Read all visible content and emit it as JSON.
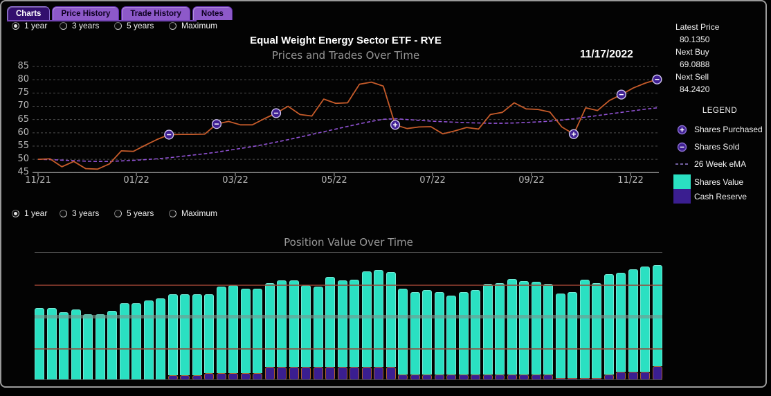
{
  "tabs": {
    "items": [
      {
        "label": "Charts",
        "selected": true
      },
      {
        "label": "Price History",
        "selected": false
      },
      {
        "label": "Trade History",
        "selected": false
      },
      {
        "label": "Notes",
        "selected": false
      }
    ]
  },
  "range_selector_top": {
    "options": [
      "1 year",
      "3 years",
      "5 years",
      "Maximum"
    ],
    "selected": "1 year"
  },
  "range_selector_bottom": {
    "options": [
      "1 year",
      "3 years",
      "5 years",
      "Maximum"
    ],
    "selected": "1 year"
  },
  "info_panel": {
    "latest_price_label": "Latest Price",
    "latest_price_value": "80.1350",
    "next_buy_label": "Next Buy",
    "next_buy_value": "69.0888",
    "next_sell_label": "Next Sell",
    "next_sell_value": "84.2420"
  },
  "legend": {
    "title": "LEGEND",
    "items": [
      {
        "icon": "circle-plus-icon",
        "label": "Shares Purchased"
      },
      {
        "icon": "circle-minus-icon",
        "label": "Shares Sold"
      },
      {
        "icon": "dashed-line-icon",
        "label": "26 Week eMA"
      },
      {
        "icon": "teal-swatch",
        "label": "Shares Value"
      },
      {
        "icon": "purple-swatch",
        "label": "Cash Reserve"
      }
    ]
  },
  "colors": {
    "price_line": "#c65b2a",
    "ema_line": "#9253d6",
    "marker_fill": "#3f1f92",
    "marker_ring": "#cfc3ef",
    "shares_value": "#2ae0c2",
    "cash_reserve": "#3a1e90",
    "grid": "#4f4f4f",
    "axis": "#909090",
    "ref_maroon": "rgba(156,68,52,0.75)",
    "ref_band": "rgba(122,150,140,0.6)"
  },
  "chart_data": [
    {
      "type": "line",
      "title": "Equal Weight Energy Sector ETF - RYE",
      "subtitle": "Prices and Trades Over Time",
      "date_annotation": "11/17/2022",
      "ylabel": "",
      "xlabel": "",
      "ylim": [
        45,
        85
      ],
      "ytick_step": 5,
      "grid": true,
      "xtick_labels": [
        "11/21",
        "01/22",
        "03/22",
        "05/22",
        "07/22",
        "09/22",
        "11/22"
      ],
      "xtick_weeks": [
        0,
        8.26,
        16.57,
        24.88,
        33.14,
        41.45,
        49.77
      ],
      "series": [
        {
          "name": "Price",
          "values": [
            50.0,
            50.2,
            47.2,
            49.2,
            46.5,
            46.3,
            48.3,
            53.2,
            53.0,
            55.3,
            57.5,
            59.3,
            59.4,
            59.4,
            59.5,
            63.3,
            64.3,
            63.0,
            63.0,
            65.3,
            67.4,
            70.0,
            66.9,
            66.3,
            72.7,
            71.1,
            71.3,
            78.3,
            79.1,
            77.6,
            63.0,
            61.6,
            62.2,
            62.3,
            59.6,
            60.7,
            62.0,
            61.4,
            66.9,
            67.7,
            71.3,
            69.0,
            68.8,
            67.8,
            62.2,
            59.5,
            69.4,
            68.4,
            72.2,
            74.4,
            76.9,
            78.7,
            80.1
          ]
        },
        {
          "name": "26 Week eMA",
          "style": "dashed",
          "values": [
            50.0,
            49.9,
            49.7,
            49.5,
            49.3,
            49.2,
            49.2,
            49.4,
            49.6,
            49.9,
            50.2,
            50.6,
            51.1,
            51.6,
            52.1,
            52.7,
            53.4,
            54.1,
            54.8,
            55.6,
            56.5,
            57.4,
            58.4,
            59.4,
            60.4,
            61.4,
            62.4,
            63.4,
            64.3,
            65.1,
            65.3,
            65.0,
            64.7,
            64.4,
            64.2,
            64.0,
            63.8,
            63.7,
            63.6,
            63.6,
            63.7,
            63.9,
            64.1,
            64.4,
            64.8,
            65.3,
            65.9,
            66.5,
            67.1,
            67.7,
            68.3,
            68.9,
            69.4
          ]
        }
      ],
      "markers_sold": [
        [
          11,
          59.3
        ],
        [
          15,
          63.3
        ],
        [
          20,
          67.4
        ],
        [
          49,
          74.4
        ],
        [
          52,
          80.1
        ]
      ],
      "markers_purchased": [
        [
          30,
          63.0
        ],
        [
          45,
          59.5
        ]
      ]
    },
    {
      "type": "stacked-bar",
      "title": "Position Value Over Time",
      "series": [
        "Shares Value",
        "Cash Reserve"
      ],
      "unit": "percent-of-plot-height",
      "bars": [
        [
          56.5,
          0
        ],
        [
          56.5,
          0
        ],
        [
          53.3,
          0
        ],
        [
          55.4,
          0
        ],
        [
          51.6,
          0
        ],
        [
          51.6,
          0
        ],
        [
          54.3,
          0
        ],
        [
          60.3,
          0
        ],
        [
          60.3,
          0
        ],
        [
          62.5,
          0
        ],
        [
          64.1,
          0
        ],
        [
          67.4,
          3.8
        ],
        [
          67.4,
          3.8
        ],
        [
          67.4,
          3.8
        ],
        [
          67.4,
          5.2
        ],
        [
          73.4,
          5.2
        ],
        [
          74.5,
          5.2
        ],
        [
          71.7,
          5.2
        ],
        [
          71.7,
          5.2
        ],
        [
          76.1,
          10.3
        ],
        [
          78.3,
          10.3
        ],
        [
          78.3,
          10.3
        ],
        [
          74.5,
          10.3
        ],
        [
          73.4,
          10.3
        ],
        [
          81.0,
          10.3
        ],
        [
          78.3,
          10.3
        ],
        [
          78.8,
          10.3
        ],
        [
          85.3,
          10.3
        ],
        [
          86.4,
          10.3
        ],
        [
          84.8,
          10.3
        ],
        [
          71.7,
          4.3
        ],
        [
          69.0,
          4.3
        ],
        [
          70.7,
          4.3
        ],
        [
          69.0,
          4.3
        ],
        [
          66.3,
          4.3
        ],
        [
          69.0,
          4.3
        ],
        [
          70.7,
          4.3
        ],
        [
          75.5,
          4.3
        ],
        [
          76.1,
          4.3
        ],
        [
          79.3,
          4.3
        ],
        [
          77.7,
          4.3
        ],
        [
          77.2,
          4.3
        ],
        [
          75.5,
          4.3
        ],
        [
          67.9,
          1.6
        ],
        [
          69.0,
          1.6
        ],
        [
          78.8,
          1.6
        ],
        [
          76.1,
          1.6
        ],
        [
          83.2,
          4.3
        ],
        [
          84.2,
          6.5
        ],
        [
          87.0,
          6.5
        ],
        [
          89.1,
          6.5
        ],
        [
          90.2,
          10.9
        ]
      ],
      "reference_lines": [
        {
          "pos_pct": 0,
          "kind": "grid-top"
        },
        {
          "pos_pct": 25.5,
          "kind": "maroon"
        },
        {
          "pos_pct": 49.5,
          "kind": "band"
        },
        {
          "pos_pct": 75.5,
          "kind": "maroon"
        },
        {
          "pos_pct": 100,
          "kind": "axis-bottom"
        }
      ]
    }
  ]
}
